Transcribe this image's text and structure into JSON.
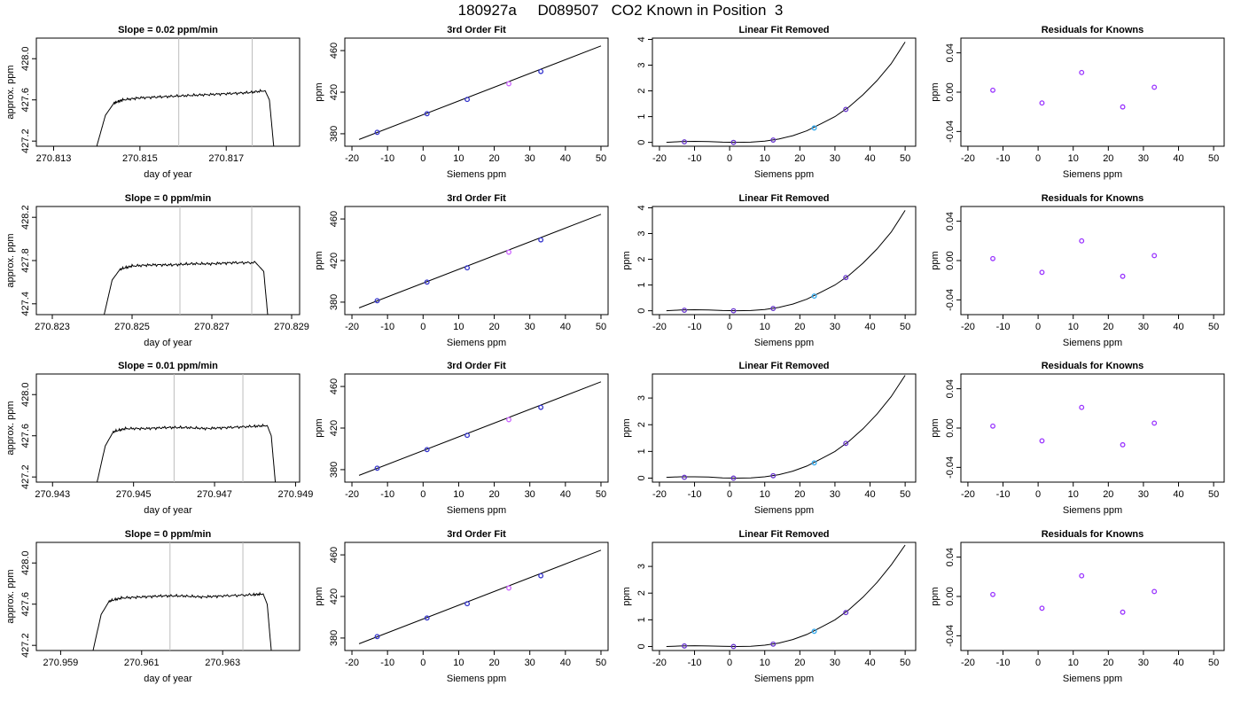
{
  "figure": {
    "title": "180927a     D089507   CO2 Known in Position  3"
  },
  "chart_data": [
    {
      "type": "line",
      "row": 0,
      "col": 0,
      "title": "Slope =  0.02  ppm/min",
      "xlabel": "day of year",
      "ylabel": "approx. ppm",
      "xlim": [
        270.8126,
        270.8187
      ],
      "ylim": [
        427.15,
        428.2
      ],
      "xticks": [
        270.813,
        270.815,
        270.817
      ],
      "xticklabels": [
        "270.813",
        "270.815",
        "270.817"
      ],
      "yticks": [
        427.2,
        427.6,
        428.0
      ],
      "yticklabels": [
        "427.2",
        "427.6",
        "428.0"
      ],
      "vlines": [
        270.8159,
        270.8176
      ],
      "series": [
        {
          "x": [
            270.814,
            270.8142,
            270.8144,
            270.8146,
            270.815,
            270.8155,
            270.816,
            270.8165,
            270.817,
            270.8175,
            270.8179,
            270.818,
            270.8181
          ],
          "values": [
            427.15,
            427.45,
            427.57,
            427.6,
            427.62,
            427.63,
            427.64,
            427.65,
            427.66,
            427.67,
            427.69,
            427.6,
            427.15
          ]
        }
      ]
    },
    {
      "type": "scatter",
      "row": 0,
      "col": 1,
      "title": "3rd Order Fit",
      "xlabel": "Siemens ppm",
      "ylabel": "ppm",
      "xlim": [
        -22,
        52
      ],
      "ylim": [
        368,
        472
      ],
      "xticks": [
        -20,
        -10,
        0,
        10,
        20,
        30,
        40,
        50
      ],
      "yticks": [
        380,
        420,
        460
      ],
      "line": {
        "x": [
          -18,
          50
        ],
        "values": [
          374.5,
          464.5
        ]
      },
      "points": {
        "x": [
          -12.9,
          1.1,
          12.4,
          24.1,
          33.1
        ],
        "values": [
          381.4,
          399.3,
          413.0,
          428.1,
          439.9
        ],
        "colors": [
          "#3333cc",
          "#3333cc",
          "#3333cc",
          "#cc66ff",
          "#3333cc"
        ]
      }
    },
    {
      "type": "line",
      "row": 0,
      "col": 2,
      "title": "Linear Fit Removed",
      "xlabel": "Siemens ppm",
      "ylabel": "",
      "xlim": [
        -22,
        53
      ],
      "ylim": [
        -0.15,
        4.05
      ],
      "xticks": [
        -20,
        -10,
        0,
        10,
        20,
        30,
        40,
        50
      ],
      "yticks": [
        0,
        1,
        2,
        3,
        4
      ],
      "curve": {
        "x": [
          -18,
          -14,
          -10,
          -6,
          -2,
          2,
          6,
          10,
          14,
          18,
          22,
          26,
          30,
          34,
          38,
          42,
          46,
          50
        ],
        "values": [
          0.0,
          0.03,
          0.04,
          0.03,
          0.01,
          0.0,
          0.01,
          0.05,
          0.13,
          0.26,
          0.45,
          0.72,
          1.0,
          1.38,
          1.85,
          2.4,
          3.05,
          3.9
        ]
      },
      "points": {
        "x": [
          -12.9,
          1.1,
          12.4,
          24.1,
          33.1
        ],
        "values": [
          0.02,
          0.0,
          0.09,
          0.56,
          1.28
        ],
        "colors": [
          "#6633cc",
          "#6633cc",
          "#6633cc",
          "#33aaee",
          "#6633cc"
        ]
      }
    },
    {
      "type": "scatter",
      "row": 0,
      "col": 3,
      "title": "Residuals for Knowns",
      "xlabel": "Siemens ppm",
      "ylabel": "ppm",
      "xlim": [
        -22,
        53
      ],
      "ylim": [
        -0.055,
        0.055
      ],
      "xticks": [
        -20,
        -10,
        0,
        10,
        20,
        30,
        40,
        50
      ],
      "yticks": [
        -0.04,
        0.0,
        0.04
      ],
      "yticklabels": [
        "-0.04",
        "0.00",
        "0.04"
      ],
      "points": {
        "x": [
          -12.9,
          1.1,
          12.4,
          24.1,
          33.1
        ],
        "values": [
          0.002,
          -0.011,
          0.02,
          -0.015,
          0.005
        ],
        "colors": [
          "#9933ff",
          "#9933ff",
          "#9933ff",
          "#9933ff",
          "#9933ff"
        ]
      }
    },
    {
      "type": "line",
      "row": 1,
      "col": 0,
      "title": "Slope =  0  ppm/min",
      "xlabel": "day of year",
      "ylabel": "approx. ppm",
      "xlim": [
        270.8226,
        270.8292
      ],
      "ylim": [
        427.3,
        428.3
      ],
      "xticks": [
        270.823,
        270.825,
        270.827,
        270.829
      ],
      "xticklabels": [
        "270.823",
        "270.825",
        "270.827",
        "270.829"
      ],
      "yticks": [
        427.4,
        427.8,
        428.2
      ],
      "yticklabels": [
        "427.4",
        "427.8",
        "428.2"
      ],
      "vlines": [
        270.8262,
        270.828
      ],
      "series": [
        {
          "x": [
            270.8243,
            270.8245,
            270.8247,
            270.825,
            270.8255,
            270.826,
            270.8265,
            270.827,
            270.8275,
            270.8281,
            270.8283,
            270.8284
          ],
          "values": [
            427.3,
            427.62,
            427.72,
            427.75,
            427.76,
            427.76,
            427.77,
            427.77,
            427.78,
            427.78,
            427.7,
            427.3
          ]
        }
      ]
    },
    {
      "type": "scatter",
      "row": 1,
      "col": 1,
      "title": "3rd Order Fit",
      "xlabel": "Siemens ppm",
      "ylabel": "ppm",
      "xlim": [
        -22,
        52
      ],
      "ylim": [
        368,
        472
      ],
      "xticks": [
        -20,
        -10,
        0,
        10,
        20,
        30,
        40,
        50
      ],
      "yticks": [
        380,
        420,
        460
      ],
      "line": {
        "x": [
          -18,
          50
        ],
        "values": [
          374.5,
          464.5
        ]
      },
      "points": {
        "x": [
          -12.9,
          1.1,
          12.4,
          24.1,
          33.1
        ],
        "values": [
          381.4,
          399.3,
          413.0,
          428.1,
          439.9
        ],
        "colors": [
          "#3333cc",
          "#3333cc",
          "#3333cc",
          "#cc66ff",
          "#3333cc"
        ]
      }
    },
    {
      "type": "line",
      "row": 1,
      "col": 2,
      "title": "Linear Fit Removed",
      "xlabel": "Siemens ppm",
      "ylabel": "ppm",
      "xlim": [
        -22,
        53
      ],
      "ylim": [
        -0.15,
        4.05
      ],
      "xticks": [
        -20,
        -10,
        0,
        10,
        20,
        30,
        40,
        50
      ],
      "yticks": [
        0,
        1,
        2,
        3,
        4
      ],
      "curve": {
        "x": [
          -18,
          -14,
          -10,
          -6,
          -2,
          2,
          6,
          10,
          14,
          18,
          22,
          26,
          30,
          34,
          38,
          42,
          46,
          50
        ],
        "values": [
          0.0,
          0.03,
          0.04,
          0.03,
          0.01,
          0.0,
          0.01,
          0.05,
          0.13,
          0.26,
          0.45,
          0.72,
          1.0,
          1.38,
          1.85,
          2.4,
          3.05,
          3.9
        ]
      },
      "points": {
        "x": [
          -12.9,
          1.1,
          12.4,
          24.1,
          33.1
        ],
        "values": [
          0.02,
          0.0,
          0.09,
          0.57,
          1.29
        ],
        "colors": [
          "#6633cc",
          "#6633cc",
          "#6633cc",
          "#33aaee",
          "#6633cc"
        ]
      }
    },
    {
      "type": "scatter",
      "row": 1,
      "col": 3,
      "title": "Residuals for Knowns",
      "xlabel": "Siemens ppm",
      "ylabel": "ppm",
      "xlim": [
        -22,
        53
      ],
      "ylim": [
        -0.055,
        0.055
      ],
      "xticks": [
        -20,
        -10,
        0,
        10,
        20,
        30,
        40,
        50
      ],
      "yticks": [
        -0.04,
        0.0,
        0.04
      ],
      "yticklabels": [
        "-0.04",
        "0.00",
        "0.04"
      ],
      "points": {
        "x": [
          -12.9,
          1.1,
          12.4,
          24.1,
          33.1
        ],
        "values": [
          0.002,
          -0.012,
          0.02,
          -0.016,
          0.005
        ],
        "colors": [
          "#9933ff",
          "#9933ff",
          "#9933ff",
          "#9933ff",
          "#9933ff"
        ]
      }
    },
    {
      "type": "line",
      "row": 2,
      "col": 0,
      "title": "Slope =  0.01  ppm/min",
      "xlabel": "day of year",
      "ylabel": "approx. ppm",
      "xlim": [
        270.9426,
        270.9491
      ],
      "ylim": [
        427.15,
        428.2
      ],
      "xticks": [
        270.943,
        270.945,
        270.947,
        270.949
      ],
      "xticklabels": [
        "270.943",
        "270.945",
        "270.947",
        "270.949"
      ],
      "yticks": [
        427.2,
        427.6,
        428.0
      ],
      "yticklabels": [
        "427.2",
        "427.6",
        "428.0"
      ],
      "vlines": [
        270.946,
        270.9477
      ],
      "series": [
        {
          "x": [
            270.9441,
            270.9443,
            270.9445,
            270.9448,
            270.9453,
            270.9458,
            270.9463,
            270.9468,
            270.9473,
            270.9479,
            270.9483,
            270.9484,
            270.9485
          ],
          "values": [
            427.15,
            427.5,
            427.64,
            427.67,
            427.67,
            427.68,
            427.68,
            427.67,
            427.68,
            427.69,
            427.7,
            427.6,
            427.15
          ]
        }
      ]
    },
    {
      "type": "scatter",
      "row": 2,
      "col": 1,
      "title": "3rd Order Fit",
      "xlabel": "Siemens ppm",
      "ylabel": "ppm",
      "xlim": [
        -22,
        52
      ],
      "ylim": [
        368,
        472
      ],
      "xticks": [
        -20,
        -10,
        0,
        10,
        20,
        30,
        40,
        50
      ],
      "yticks": [
        380,
        420,
        460
      ],
      "line": {
        "x": [
          -18,
          50
        ],
        "values": [
          374.5,
          464.5
        ]
      },
      "points": {
        "x": [
          -12.9,
          1.1,
          12.4,
          24.1,
          33.1
        ],
        "values": [
          381.4,
          399.3,
          413.0,
          428.1,
          439.9
        ],
        "colors": [
          "#3333cc",
          "#3333cc",
          "#3333cc",
          "#cc66ff",
          "#3333cc"
        ]
      }
    },
    {
      "type": "line",
      "row": 2,
      "col": 2,
      "title": "Linear Fit Removed",
      "xlabel": "Siemens ppm",
      "ylabel": "ppm",
      "xlim": [
        -22,
        53
      ],
      "ylim": [
        -0.15,
        3.9
      ],
      "xticks": [
        -20,
        -10,
        0,
        10,
        20,
        30,
        40,
        50
      ],
      "yticks": [
        0,
        1,
        2,
        3
      ],
      "curve": {
        "x": [
          -18,
          -14,
          -10,
          -6,
          -2,
          2,
          6,
          10,
          14,
          18,
          22,
          26,
          30,
          34,
          38,
          42,
          46,
          50
        ],
        "values": [
          0.03,
          0.05,
          0.05,
          0.04,
          0.01,
          0.0,
          0.01,
          0.05,
          0.13,
          0.26,
          0.45,
          0.72,
          1.0,
          1.38,
          1.85,
          2.4,
          3.05,
          3.85
        ]
      },
      "points": {
        "x": [
          -12.9,
          1.1,
          12.4,
          24.1,
          33.1
        ],
        "values": [
          0.03,
          0.0,
          0.09,
          0.57,
          1.3
        ],
        "colors": [
          "#6633cc",
          "#6633cc",
          "#6633cc",
          "#33aaee",
          "#6633cc"
        ]
      }
    },
    {
      "type": "scatter",
      "row": 2,
      "col": 3,
      "title": "Residuals for Knowns",
      "xlabel": "Siemens ppm",
      "ylabel": "ppm",
      "xlim": [
        -22,
        53
      ],
      "ylim": [
        -0.055,
        0.055
      ],
      "xticks": [
        -20,
        -10,
        0,
        10,
        20,
        30,
        40,
        50
      ],
      "yticks": [
        -0.04,
        0.0,
        0.04
      ],
      "yticklabels": [
        "-0.04",
        "0.00",
        "0.04"
      ],
      "points": {
        "x": [
          -12.9,
          1.1,
          12.4,
          24.1,
          33.1
        ],
        "values": [
          0.002,
          -0.013,
          0.021,
          -0.017,
          0.005
        ],
        "colors": [
          "#9933ff",
          "#9933ff",
          "#9933ff",
          "#9933ff",
          "#9933ff"
        ]
      }
    },
    {
      "type": "line",
      "row": 3,
      "col": 0,
      "title": "Slope =  0  ppm/min",
      "xlabel": "day of year",
      "ylabel": "approx. ppm",
      "xlim": [
        270.9584,
        270.9649
      ],
      "ylim": [
        427.15,
        428.2
      ],
      "xticks": [
        270.959,
        270.961,
        270.963
      ],
      "xticklabels": [
        "270.959",
        "270.961",
        "270.963"
      ],
      "yticks": [
        427.2,
        427.6,
        428.0
      ],
      "yticklabels": [
        "427.2",
        "427.6",
        "428.0"
      ],
      "vlines": [
        270.9617,
        270.9635
      ],
      "series": [
        {
          "x": [
            270.9598,
            270.96,
            270.9602,
            270.9605,
            270.961,
            270.9615,
            270.962,
            270.9625,
            270.963,
            270.9637,
            270.964,
            270.9641,
            270.9642
          ],
          "values": [
            427.15,
            427.5,
            427.63,
            427.66,
            427.67,
            427.68,
            427.68,
            427.67,
            427.68,
            427.69,
            427.7,
            427.6,
            427.15
          ]
        }
      ]
    },
    {
      "type": "scatter",
      "row": 3,
      "col": 1,
      "title": "3rd Order Fit",
      "xlabel": "Siemens ppm",
      "ylabel": "ppm",
      "xlim": [
        -22,
        52
      ],
      "ylim": [
        368,
        472
      ],
      "xticks": [
        -20,
        -10,
        0,
        10,
        20,
        30,
        40,
        50
      ],
      "yticks": [
        380,
        420,
        460
      ],
      "line": {
        "x": [
          -18,
          50
        ],
        "values": [
          374.5,
          464.5
        ]
      },
      "points": {
        "x": [
          -12.9,
          1.1,
          12.4,
          24.1,
          33.1
        ],
        "values": [
          381.4,
          399.3,
          413.0,
          428.1,
          439.9
        ],
        "colors": [
          "#3333cc",
          "#3333cc",
          "#3333cc",
          "#cc66ff",
          "#3333cc"
        ]
      }
    },
    {
      "type": "line",
      "row": 3,
      "col": 2,
      "title": "Linear Fit Removed",
      "xlabel": "Siemens ppm",
      "ylabel": "ppm",
      "xlim": [
        -22,
        53
      ],
      "ylim": [
        -0.15,
        3.9
      ],
      "xticks": [
        -20,
        -10,
        0,
        10,
        20,
        30,
        40,
        50
      ],
      "yticks": [
        0,
        1,
        2,
        3
      ],
      "curve": {
        "x": [
          -18,
          -14,
          -10,
          -6,
          -2,
          2,
          6,
          10,
          14,
          18,
          22,
          26,
          30,
          34,
          38,
          42,
          46,
          50
        ],
        "values": [
          0.0,
          0.02,
          0.03,
          0.02,
          0.01,
          0.0,
          0.01,
          0.05,
          0.13,
          0.26,
          0.45,
          0.72,
          1.0,
          1.38,
          1.85,
          2.4,
          3.05,
          3.8
        ]
      },
      "points": {
        "x": [
          -12.9,
          1.1,
          12.4,
          24.1,
          33.1
        ],
        "values": [
          0.02,
          0.0,
          0.09,
          0.57,
          1.27
        ],
        "colors": [
          "#6633cc",
          "#6633cc",
          "#6633cc",
          "#33aaee",
          "#6633cc"
        ]
      }
    },
    {
      "type": "scatter",
      "row": 3,
      "col": 3,
      "title": "Residuals for Knowns",
      "xlabel": "Siemens ppm",
      "ylabel": "ppm",
      "xlim": [
        -22,
        53
      ],
      "ylim": [
        -0.055,
        0.055
      ],
      "xticks": [
        -20,
        -10,
        0,
        10,
        20,
        30,
        40,
        50
      ],
      "yticks": [
        -0.04,
        0.0,
        0.04
      ],
      "yticklabels": [
        "-0.04",
        "0.00",
        "0.04"
      ],
      "points": {
        "x": [
          -12.9,
          1.1,
          12.4,
          24.1,
          33.1
        ],
        "values": [
          0.002,
          -0.012,
          0.021,
          -0.016,
          0.005
        ],
        "colors": [
          "#9933ff",
          "#9933ff",
          "#9933ff",
          "#9933ff",
          "#9933ff"
        ]
      }
    }
  ]
}
